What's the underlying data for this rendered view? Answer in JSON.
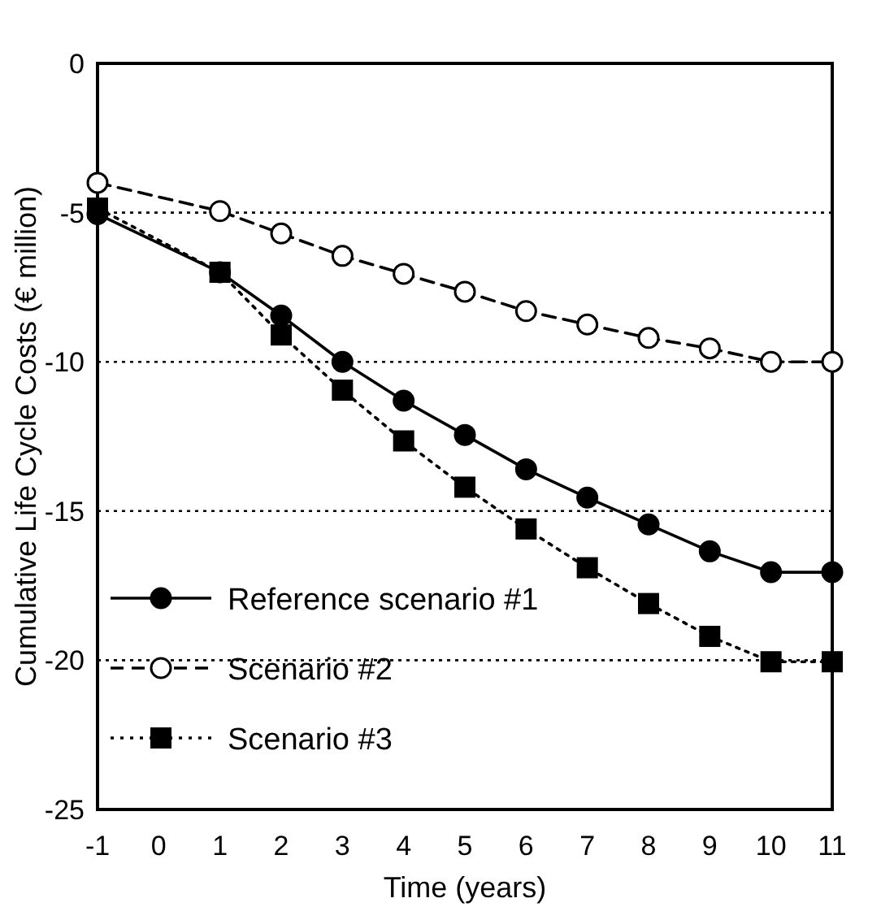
{
  "chart_data": {
    "type": "line",
    "xlabel": "Time (years)",
    "ylabel": "Cumulative Life Cycle Costs (€ million)",
    "x": [
      -1,
      1,
      2,
      3,
      4,
      5,
      6,
      7,
      8,
      9,
      10,
      11
    ],
    "xlim": [
      -1,
      11
    ],
    "xticks": [
      -1,
      0,
      1,
      2,
      3,
      4,
      5,
      6,
      7,
      8,
      9,
      10,
      11
    ],
    "ylim": [
      -25,
      0
    ],
    "yticks": [
      -25,
      -20,
      -15,
      -10,
      -5,
      0
    ],
    "grid": "y",
    "legend": "bottom left",
    "series": [
      {
        "name": "Reference scenario #1",
        "color": "#000000",
        "marker": "circle",
        "line_style": "solid",
        "values": [
          -5.05,
          -7.0,
          -8.45,
          -10.0,
          -11.3,
          -12.45,
          -13.6,
          -14.55,
          -15.45,
          -16.35,
          -17.05,
          -17.05
        ]
      },
      {
        "name": "Scenario #2",
        "color": "#000000",
        "marker": "circle",
        "line_style": "dashed",
        "values": [
          -4.0,
          -4.95,
          -5.7,
          -6.45,
          -7.05,
          -7.65,
          -8.3,
          -8.75,
          -9.2,
          -9.55,
          -10.0,
          -10.0
        ]
      },
      {
        "name": "Scenario #3",
        "color": "#000000",
        "marker": "square",
        "line_style": "dotted",
        "values": [
          -4.85,
          -7.0,
          -9.1,
          -10.95,
          -12.65,
          -14.2,
          -15.6,
          -16.9,
          -18.1,
          -19.2,
          -20.05,
          -20.05
        ]
      }
    ]
  }
}
